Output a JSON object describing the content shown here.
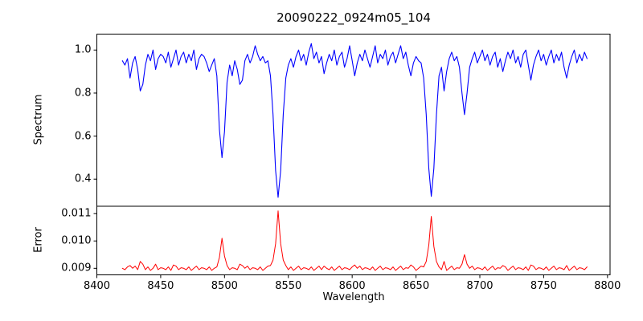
{
  "chart_data": {
    "type": "line",
    "title": "20090222_0924m05_104",
    "xlabel": "Wavelength",
    "grid": false,
    "legend": null,
    "xlim": [
      8400,
      8802
    ],
    "xticks": [
      8400,
      8450,
      8500,
      8550,
      8600,
      8650,
      8700,
      8750,
      8800
    ],
    "xtick_labels": [
      "8400",
      "8450",
      "8500",
      "8550",
      "8600",
      "8650",
      "8700",
      "8750",
      "8800"
    ],
    "x_start": 8420,
    "x_step": 2,
    "spine_color": "#000000",
    "panels": [
      {
        "name": "spectrum",
        "ylabel": "Spectrum",
        "color": "#0000ff",
        "ylim": [
          0.274,
          1.074
        ],
        "yticks": [
          0.4,
          0.6,
          0.8,
          1.0
        ],
        "ytick_labels": [
          "0.4",
          "0.6",
          "0.8",
          "1.0"
        ],
        "values": [
          0.95,
          0.93,
          0.96,
          0.87,
          0.94,
          0.97,
          0.91,
          0.81,
          0.84,
          0.93,
          0.98,
          0.95,
          1.0,
          0.91,
          0.96,
          0.98,
          0.97,
          0.94,
          0.99,
          0.92,
          0.96,
          1.0,
          0.93,
          0.97,
          0.99,
          0.94,
          0.98,
          0.95,
          1.0,
          0.91,
          0.96,
          0.98,
          0.97,
          0.94,
          0.9,
          0.93,
          0.96,
          0.88,
          0.63,
          0.5,
          0.62,
          0.85,
          0.93,
          0.88,
          0.95,
          0.91,
          0.84,
          0.86,
          0.95,
          0.98,
          0.94,
          0.97,
          1.02,
          0.98,
          0.95,
          0.97,
          0.94,
          0.95,
          0.88,
          0.7,
          0.44,
          0.315,
          0.44,
          0.7,
          0.87,
          0.93,
          0.96,
          0.92,
          0.97,
          1.0,
          0.95,
          0.98,
          0.93,
          0.99,
          1.03,
          0.96,
          0.99,
          0.94,
          0.97,
          0.89,
          0.94,
          0.98,
          0.95,
          1.0,
          0.93,
          0.97,
          0.99,
          0.92,
          0.96,
          1.02,
          0.95,
          0.88,
          0.94,
          0.98,
          0.95,
          1.0,
          0.96,
          0.92,
          0.97,
          1.02,
          0.94,
          0.98,
          0.96,
          1.0,
          0.93,
          0.97,
          0.99,
          0.94,
          0.98,
          1.02,
          0.96,
          0.99,
          0.93,
          0.88,
          0.94,
          0.97,
          0.95,
          0.94,
          0.87,
          0.7,
          0.45,
          0.32,
          0.45,
          0.7,
          0.88,
          0.92,
          0.81,
          0.9,
          0.96,
          0.99,
          0.95,
          0.97,
          0.92,
          0.8,
          0.7,
          0.8,
          0.92,
          0.96,
          0.99,
          0.94,
          0.97,
          1.0,
          0.95,
          0.98,
          0.93,
          0.97,
          0.99,
          0.92,
          0.96,
          0.9,
          0.95,
          0.99,
          0.96,
          1.0,
          0.94,
          0.97,
          0.92,
          0.98,
          1.0,
          0.93,
          0.86,
          0.93,
          0.97,
          1.0,
          0.95,
          0.98,
          0.93,
          0.97,
          1.0,
          0.94,
          0.98,
          0.95,
          0.99,
          0.92,
          0.87,
          0.93,
          0.97,
          1.0,
          0.94,
          0.98,
          0.95,
          0.99,
          0.96
        ]
      },
      {
        "name": "error",
        "ylabel": "Error",
        "color": "#ff0000",
        "ylim": [
          0.00876,
          0.01127
        ],
        "yticks": [
          0.009,
          0.01,
          0.011
        ],
        "ytick_labels": [
          "0.009",
          "0.010",
          "0.011"
        ],
        "values": [
          0.009,
          0.00895,
          0.00905,
          0.0091,
          0.009,
          0.00908,
          0.00895,
          0.00925,
          0.00915,
          0.00895,
          0.00905,
          0.00892,
          0.009,
          0.00915,
          0.00895,
          0.00902,
          0.009,
          0.00895,
          0.00905,
          0.00892,
          0.00912,
          0.00908,
          0.00895,
          0.00902,
          0.009,
          0.00895,
          0.00905,
          0.00892,
          0.009,
          0.00908,
          0.00895,
          0.00902,
          0.009,
          0.00895,
          0.00905,
          0.00892,
          0.009,
          0.00905,
          0.0094,
          0.0101,
          0.00945,
          0.0091,
          0.00895,
          0.00902,
          0.009,
          0.00895,
          0.00915,
          0.0091,
          0.009,
          0.00908,
          0.00895,
          0.00902,
          0.009,
          0.00895,
          0.00905,
          0.00892,
          0.009,
          0.00908,
          0.0091,
          0.0093,
          0.0099,
          0.0111,
          0.0099,
          0.0093,
          0.0091,
          0.00895,
          0.00905,
          0.00892,
          0.009,
          0.00908,
          0.00895,
          0.00902,
          0.009,
          0.00895,
          0.00905,
          0.00892,
          0.009,
          0.00908,
          0.00895,
          0.00908,
          0.009,
          0.00895,
          0.00905,
          0.00892,
          0.009,
          0.00908,
          0.00895,
          0.00902,
          0.009,
          0.00895,
          0.00905,
          0.00912,
          0.009,
          0.00908,
          0.00895,
          0.00902,
          0.009,
          0.00895,
          0.00905,
          0.00892,
          0.009,
          0.00908,
          0.00895,
          0.00902,
          0.009,
          0.00895,
          0.00905,
          0.00892,
          0.009,
          0.00908,
          0.00895,
          0.00902,
          0.009,
          0.00912,
          0.00905,
          0.00892,
          0.009,
          0.00908,
          0.00905,
          0.00925,
          0.00985,
          0.0109,
          0.0098,
          0.00925,
          0.00905,
          0.00895,
          0.00925,
          0.00892,
          0.009,
          0.00908,
          0.00895,
          0.00902,
          0.009,
          0.00915,
          0.0095,
          0.00915,
          0.009,
          0.00908,
          0.00895,
          0.00902,
          0.009,
          0.00895,
          0.00905,
          0.00892,
          0.009,
          0.00908,
          0.00895,
          0.00902,
          0.009,
          0.0091,
          0.00905,
          0.00892,
          0.009,
          0.00908,
          0.00895,
          0.00902,
          0.009,
          0.00895,
          0.00905,
          0.00892,
          0.00912,
          0.00908,
          0.00895,
          0.00902,
          0.009,
          0.00895,
          0.00905,
          0.00892,
          0.009,
          0.00908,
          0.00895,
          0.00902,
          0.009,
          0.00895,
          0.0091,
          0.00892,
          0.009,
          0.00908,
          0.00895,
          0.00902,
          0.009,
          0.00895,
          0.00905
        ]
      }
    ]
  }
}
